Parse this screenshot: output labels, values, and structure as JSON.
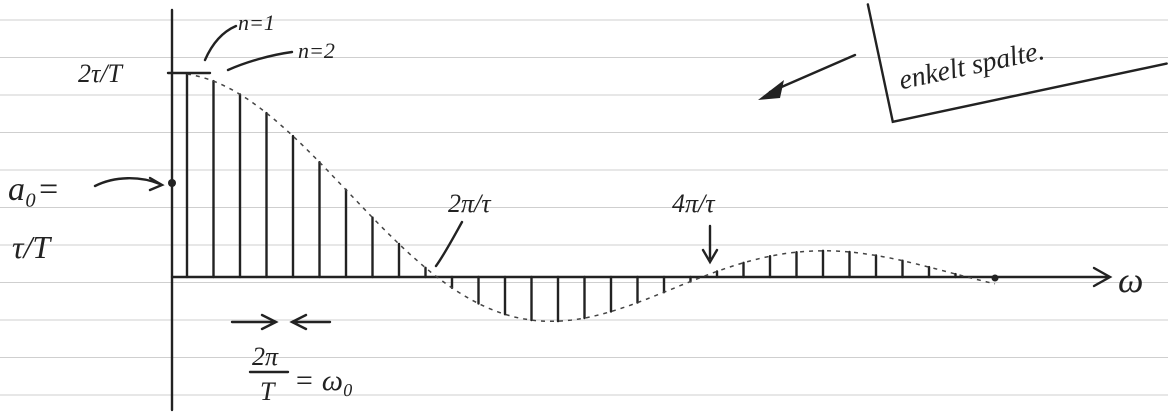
{
  "labels": {
    "top_level": "2τ/T",
    "n1": "n=1",
    "n2": "n=2",
    "a0": "a₀=",
    "a0_value": "τ/T",
    "zero1": "2π/τ",
    "zero2": "4π/τ",
    "axis": "ω",
    "spacing_num": "2π",
    "spacing_den": "T",
    "spacing_rhs": "= ω₀"
  },
  "box": {
    "text": "enkelt spalte."
  }
}
